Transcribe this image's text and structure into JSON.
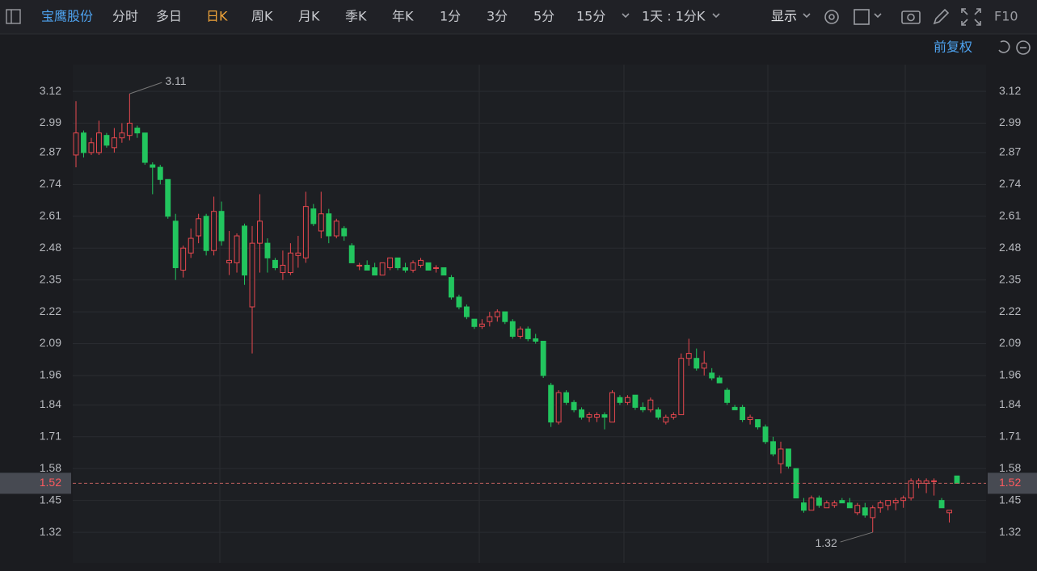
{
  "toolbar": {
    "stock": "宝鹰股份",
    "tabs": [
      "分时",
      "多日",
      "日K",
      "周K",
      "月K",
      "季K",
      "年K",
      "1分",
      "3分",
      "5分",
      "15分"
    ],
    "active_index": 2,
    "active_color": "#f0a43a",
    "period": "1天 : 1分K",
    "display": "显示",
    "f10": "F10"
  },
  "adjust": "前复权",
  "chart_data": {
    "type": "candlestick",
    "up_color": "#e8484f",
    "down_color": "#22c55e",
    "ylim": [
      1.195,
      3.229
    ],
    "yticks": [
      1.32,
      1.45,
      1.58,
      1.71,
      1.84,
      1.96,
      2.09,
      2.22,
      2.35,
      2.48,
      2.61,
      2.74,
      2.87,
      2.99,
      3.12
    ],
    "last_price": 1.52,
    "max_label": 3.11,
    "min_label": 1.32,
    "open": [
      2.86,
      2.95,
      2.87,
      2.87,
      2.94,
      2.89,
      2.93,
      2.94,
      2.97,
      2.95,
      2.82,
      2.81,
      2.76,
      2.59,
      2.39,
      2.46,
      2.53,
      2.61,
      2.47,
      2.63,
      2.42,
      2.42,
      2.57,
      2.24,
      2.5,
      2.5,
      2.43,
      2.38,
      2.38,
      2.45,
      2.44,
      2.64,
      2.55,
      2.62,
      2.53,
      2.56,
      2.49,
      2.41,
      2.41,
      2.4,
      2.37,
      2.4,
      2.44,
      2.4,
      2.39,
      2.41,
      2.42,
      2.4,
      2.4,
      2.36,
      2.28,
      2.24,
      2.19,
      2.16,
      2.18,
      2.2,
      2.22,
      2.18,
      2.12,
      2.15,
      2.11,
      2.1,
      1.92,
      1.77,
      1.89,
      1.85,
      1.82,
      1.79,
      1.79,
      1.8,
      1.77,
      1.87,
      1.85,
      1.88,
      1.83,
      1.82,
      1.82,
      1.77,
      1.79,
      1.8,
      2.03,
      2.03,
      1.99,
      1.97,
      1.95,
      1.9,
      1.83,
      1.83,
      1.78,
      1.78,
      1.75,
      1.69,
      1.6,
      1.66,
      1.58,
      1.44,
      1.41,
      1.46,
      1.42,
      1.43,
      1.45,
      1.44,
      1.4,
      1.42,
      1.38,
      1.42,
      1.43,
      1.44,
      1.45,
      1.46,
      1.52,
      1.52,
      1.53,
      1.45,
      1.4,
      1.55
    ],
    "high": [
      3.08,
      2.96,
      2.93,
      3.0,
      2.95,
      2.97,
      2.99,
      3.11,
      2.98,
      2.95,
      2.83,
      2.82,
      2.76,
      2.62,
      2.49,
      2.56,
      2.62,
      2.62,
      2.69,
      2.67,
      2.55,
      2.54,
      2.58,
      2.57,
      2.7,
      2.52,
      2.44,
      2.47,
      2.5,
      2.53,
      2.71,
      2.66,
      2.71,
      2.64,
      2.6,
      2.57,
      2.5,
      2.42,
      2.43,
      2.42,
      2.42,
      2.44,
      2.44,
      2.42,
      2.43,
      2.44,
      2.42,
      2.41,
      2.4,
      2.37,
      2.29,
      2.25,
      2.19,
      2.19,
      2.22,
      2.23,
      2.22,
      2.19,
      2.16,
      2.16,
      2.13,
      2.1,
      1.93,
      1.9,
      1.9,
      1.86,
      1.83,
      1.81,
      1.81,
      1.81,
      1.9,
      1.88,
      1.88,
      1.88,
      1.85,
      1.87,
      1.83,
      1.8,
      1.81,
      2.05,
      2.11,
      2.07,
      2.06,
      1.99,
      1.96,
      1.91,
      1.84,
      1.84,
      1.8,
      1.78,
      1.76,
      1.71,
      1.69,
      1.66,
      1.58,
      1.46,
      1.47,
      1.47,
      1.45,
      1.45,
      1.46,
      1.46,
      1.44,
      1.44,
      1.43,
      1.45,
      1.45,
      1.46,
      1.47,
      1.54,
      1.54,
      1.54,
      1.54,
      1.46,
      1.41,
      1.55
    ],
    "low": [
      2.81,
      2.85,
      2.86,
      2.86,
      2.89,
      2.87,
      2.91,
      2.92,
      2.93,
      2.82,
      2.7,
      2.74,
      2.6,
      2.35,
      2.36,
      2.44,
      2.5,
      2.45,
      2.45,
      2.49,
      2.37,
      2.38,
      2.33,
      2.05,
      2.38,
      2.38,
      2.39,
      2.35,
      2.37,
      2.4,
      2.42,
      2.57,
      2.52,
      2.5,
      2.52,
      2.51,
      2.42,
      2.39,
      2.39,
      2.37,
      2.37,
      2.39,
      2.39,
      2.38,
      2.38,
      2.4,
      2.39,
      2.38,
      2.37,
      2.27,
      2.23,
      2.19,
      2.15,
      2.15,
      2.16,
      2.18,
      2.17,
      2.11,
      2.11,
      2.1,
      2.09,
      1.95,
      1.75,
      1.76,
      1.84,
      1.81,
      1.78,
      1.77,
      1.77,
      1.74,
      1.77,
      1.84,
      1.84,
      1.82,
      1.81,
      1.81,
      1.78,
      1.76,
      1.78,
      1.8,
      2.0,
      1.98,
      1.96,
      1.94,
      1.93,
      1.84,
      1.82,
      1.77,
      1.76,
      1.74,
      1.68,
      1.63,
      1.56,
      1.58,
      1.46,
      1.4,
      1.41,
      1.42,
      1.42,
      1.42,
      1.44,
      1.42,
      1.39,
      1.38,
      1.32,
      1.4,
      1.41,
      1.41,
      1.42,
      1.45,
      1.5,
      1.48,
      1.47,
      1.42,
      1.36,
      1.52
    ],
    "close": [
      2.95,
      2.87,
      2.91,
      2.95,
      2.9,
      2.93,
      2.95,
      2.99,
      2.95,
      2.83,
      2.81,
      2.76,
      2.61,
      2.4,
      2.48,
      2.52,
      2.6,
      2.47,
      2.63,
      2.51,
      2.43,
      2.53,
      2.37,
      2.5,
      2.59,
      2.44,
      2.4,
      2.41,
      2.46,
      2.46,
      2.65,
      2.58,
      2.62,
      2.53,
      2.59,
      2.53,
      2.42,
      2.41,
      2.39,
      2.37,
      2.42,
      2.44,
      2.4,
      2.39,
      2.42,
      2.43,
      2.39,
      2.4,
      2.37,
      2.28,
      2.24,
      2.2,
      2.16,
      2.17,
      2.2,
      2.22,
      2.18,
      2.12,
      2.15,
      2.11,
      2.1,
      1.96,
      1.77,
      1.89,
      1.85,
      1.82,
      1.79,
      1.8,
      1.8,
      1.79,
      1.89,
      1.85,
      1.87,
      1.83,
      1.82,
      1.86,
      1.79,
      1.79,
      1.8,
      2.03,
      2.05,
      1.99,
      2.01,
      1.95,
      1.93,
      1.85,
      1.82,
      1.78,
      1.79,
      1.75,
      1.69,
      1.64,
      1.66,
      1.59,
      1.46,
      1.41,
      1.46,
      1.43,
      1.44,
      1.44,
      1.44,
      1.42,
      1.43,
      1.39,
      1.42,
      1.44,
      1.45,
      1.45,
      1.46,
      1.53,
      1.53,
      1.53,
      1.53,
      1.42,
      1.41,
      1.52
    ]
  }
}
